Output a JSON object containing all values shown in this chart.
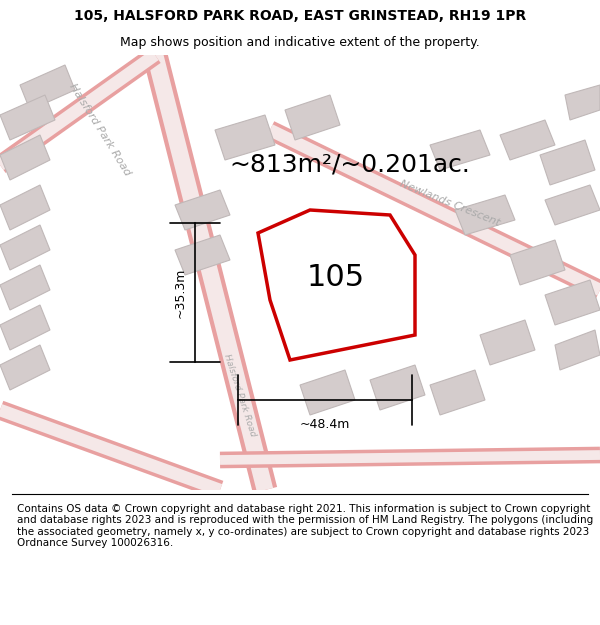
{
  "title_line1": "105, HALSFORD PARK ROAD, EAST GRINSTEAD, RH19 1PR",
  "title_line2": "Map shows position and indicative extent of the property.",
  "area_text": "~813m²/~0.201ac.",
  "number_label": "105",
  "dim_width": "~48.4m",
  "dim_height": "~35.3m",
  "footer_text": "Contains OS data © Crown copyright and database right 2021. This information is subject to Crown copyright and database rights 2023 and is reproduced with the permission of HM Land Registry. The polygons (including the associated geometry, namely x, y co-ordinates) are subject to Crown copyright and database rights 2023 Ordnance Survey 100026316.",
  "map_bg": "#f7f0f0",
  "road_outer": "#e8a0a0",
  "road_inner": "#f5e8e8",
  "building_fc": "#d4cccc",
  "building_ec": "#c0b8b8",
  "street_color": "#aaaaaa",
  "red_color": "#cc0000",
  "black": "#000000",
  "white": "#ffffff",
  "title_fs": 10,
  "subtitle_fs": 9,
  "area_fs": 18,
  "label_fs": 22,
  "dim_fs": 9,
  "street_fs": 8,
  "footer_fs": 7.5
}
